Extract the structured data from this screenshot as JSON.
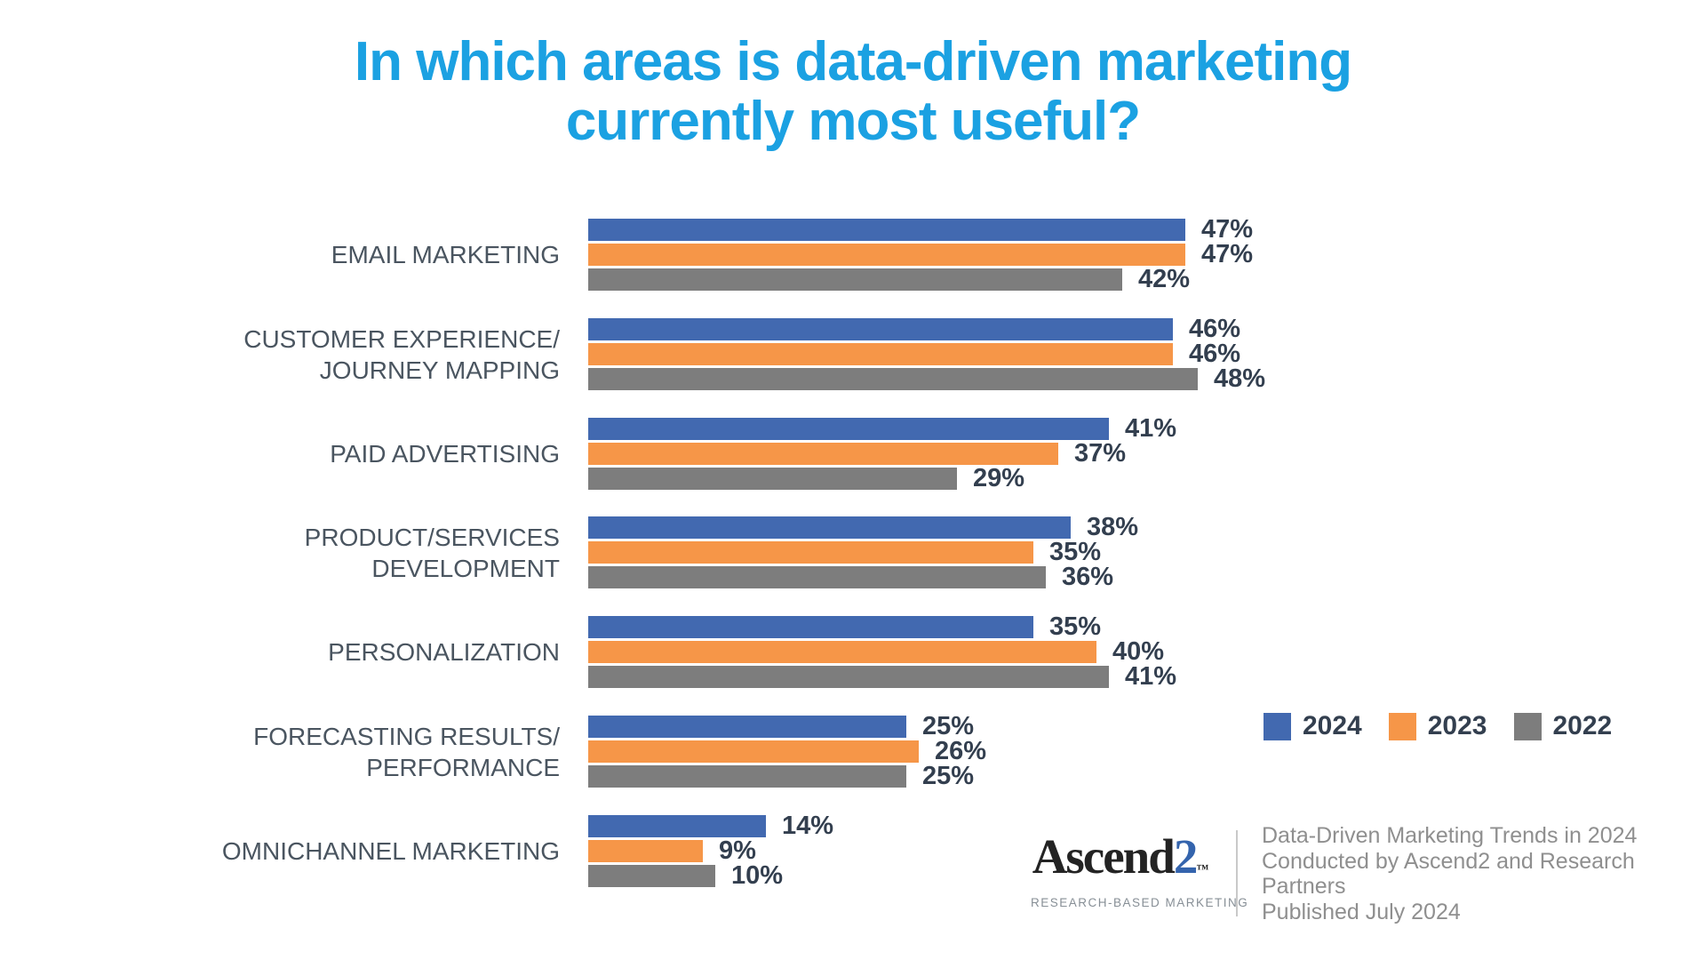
{
  "title": {
    "line1": "In which areas is data-driven marketing",
    "line2": "currently most useful?"
  },
  "chart_data": {
    "type": "bar",
    "orientation": "horizontal",
    "title": "In which areas is data-driven marketing currently most useful?",
    "title_color": "#1BA1E2",
    "value_suffix": "%",
    "xlim": [
      0,
      50
    ],
    "grid": false,
    "legend_position": "middle-right",
    "categories": [
      [
        "EMAIL MARKETING"
      ],
      [
        "CUSTOMER EXPERIENCE/",
        "JOURNEY MAPPING"
      ],
      [
        "PAID ADVERTISING"
      ],
      [
        "PRODUCT/SERVICES",
        "DEVELOPMENT"
      ],
      [
        "PERSONALIZATION"
      ],
      [
        "FORECASTING RESULTS/",
        "PERFORMANCE"
      ],
      [
        "OMNICHANNEL MARKETING"
      ]
    ],
    "series": [
      {
        "name": "2024",
        "color": "#4269B0",
        "values": [
          47,
          46,
          41,
          38,
          35,
          25,
          14
        ]
      },
      {
        "name": "2023",
        "color": "#F69648",
        "values": [
          47,
          46,
          37,
          35,
          40,
          26,
          9
        ]
      },
      {
        "name": "2022",
        "color": "#7D7D7D",
        "values": [
          42,
          48,
          29,
          36,
          41,
          25,
          10
        ]
      }
    ]
  },
  "footer": {
    "logo": {
      "name_black": "Ascend",
      "name_accent": "2",
      "trademark": "™",
      "tagline": "RESEARCH-BASED MARKETING",
      "accent_color": "#3464AD"
    },
    "source_lines": [
      "Data-Driven Marketing Trends in 2024",
      "Conducted by Ascend2 and Research Partners",
      "Published July 2024"
    ]
  }
}
